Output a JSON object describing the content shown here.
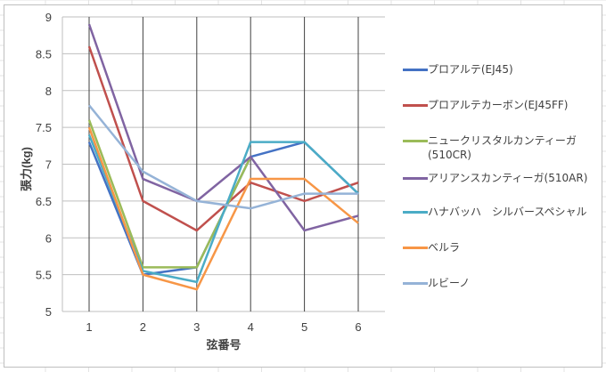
{
  "chart_data": {
    "type": "line",
    "title": "",
    "xlabel": "弦番号",
    "ylabel": "張力(kg)",
    "categories": [
      "1",
      "2",
      "3",
      "4",
      "5",
      "6"
    ],
    "ylim": [
      5,
      9
    ],
    "yticks": [
      "5",
      "5.5",
      "6",
      "6.5",
      "7",
      "7.5",
      "8",
      "8.5",
      "9"
    ],
    "grid": true,
    "legend_position": "right",
    "series": [
      {
        "name": "プロアルテ(EJ45)",
        "color": "#4472C4",
        "values": [
          7.3,
          5.5,
          5.6,
          7.1,
          7.3,
          6.6
        ]
      },
      {
        "name": "プロアルテカーボン(EJ45FF)",
        "color": "#C0504D",
        "values": [
          8.6,
          6.5,
          6.1,
          6.75,
          6.5,
          6.75
        ]
      },
      {
        "name": "ニュークリスタルカンティーガ(510CR)",
        "color": "#9BBB59",
        "values": [
          7.6,
          5.6,
          5.6,
          7.1,
          null,
          null
        ]
      },
      {
        "name": "アリアンスカンティーガ(510AR)",
        "color": "#8064A2",
        "values": [
          8.9,
          6.8,
          6.5,
          7.1,
          6.1,
          6.3
        ]
      },
      {
        "name": "ハナバッハ シルバースペシャル",
        "color": "#4BACC6",
        "values": [
          7.4,
          5.55,
          5.4,
          7.3,
          7.3,
          6.6
        ]
      },
      {
        "name": "ベルラ",
        "color": "#F79646",
        "values": [
          7.5,
          5.5,
          5.3,
          6.8,
          6.8,
          6.2
        ]
      },
      {
        "name": "ルビーノ",
        "color": "#95B3D7",
        "values": [
          7.8,
          6.9,
          6.5,
          6.4,
          6.6,
          6.6
        ]
      }
    ]
  },
  "legend": {
    "items": [
      {
        "label": "プロアルテ(EJ45)",
        "color": "#4472C4"
      },
      {
        "label": "プロアルテカーボン(EJ45FF)",
        "color": "#C0504D"
      },
      {
        "label": "ニュークリスタルカンティーガ(510CR)",
        "color": "#9BBB59"
      },
      {
        "label": "アリアンスカンティーガ(510AR)",
        "color": "#8064A2"
      },
      {
        "label": "ハナバッハ　シルバースペシャル",
        "color": "#4BACC6"
      },
      {
        "label": "ベルラ",
        "color": "#F79646"
      },
      {
        "label": "ルビーノ",
        "color": "#95B3D7"
      }
    ]
  }
}
